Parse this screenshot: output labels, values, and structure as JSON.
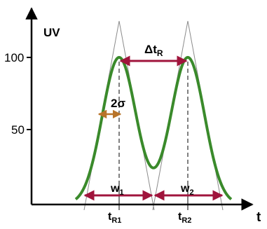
{
  "chart_data": {
    "type": "line",
    "y_axis_label": "UV",
    "x_axis_label": "t",
    "y_ticks": [
      "50",
      "100"
    ],
    "ylim": [
      0,
      130
    ],
    "grid": false,
    "legend": "none",
    "peaks": [
      {
        "name": "peak-1",
        "retention_label": "t",
        "retention_sub": "R1",
        "width_label": "w",
        "width_sub": "1",
        "height": 100
      },
      {
        "name": "peak-2",
        "retention_label": "t",
        "retention_sub": "R2",
        "width_label": "w",
        "width_sub": "2",
        "height": 100
      }
    ],
    "sigma_label": "2σ",
    "delta_label": "Δt",
    "delta_sub": "R",
    "colors": {
      "curve": "#3a8a2b",
      "arrow": "#a0143c",
      "sigma_arrow": "#b8742a",
      "axis": "#000000",
      "tangent": "#8c8c8c"
    }
  }
}
